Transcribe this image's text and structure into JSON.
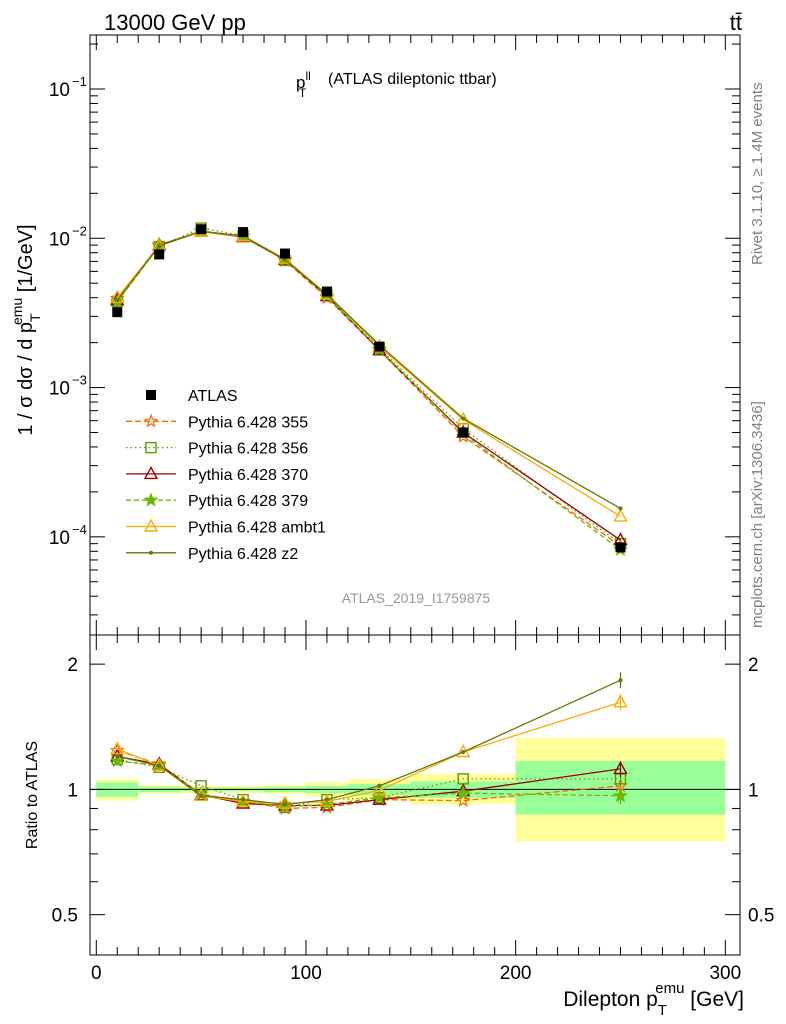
{
  "header": {
    "left": "13000 GeV pp",
    "right": "tt̄"
  },
  "side_labels": {
    "upper": "Rivet 3.1.10, ≥ 1.4M events",
    "lower": "mcplots.cern.ch [arXiv:1306.3436]"
  },
  "analysis_id": "ATLAS_2019_I1759875",
  "main_title": "(ATLAS dileptonic ttbar)",
  "main_title_symbol": {
    "base": "p",
    "sup": "ll",
    "sub": "T"
  },
  "main_ylabel": {
    "pre": "1 / σ  dσ / d p",
    "sup": "emu",
    "sub": "T",
    "post": " [1/GeV]"
  },
  "ratio_ylabel": "Ratio to ATLAS",
  "xlabel": {
    "pre": "Dilepton p",
    "sup": "emu",
    "sub": "T",
    "post": " [GeV]"
  },
  "colors": {
    "data": "#000000",
    "band_inner": "#99ff99",
    "band_outer": "#ffff99"
  },
  "chart_data": {
    "type": "scatter",
    "x_bin_edges": [
      0,
      20,
      40,
      60,
      80,
      100,
      120,
      150,
      200,
      300
    ],
    "x_centers": [
      10,
      30,
      50,
      70,
      90,
      110,
      135,
      175,
      250
    ],
    "xlim": [
      -3,
      307
    ],
    "x_ticks": [
      0,
      100,
      200,
      300
    ],
    "main": {
      "yscale": "log",
      "ylim": [
        2.2e-05,
        0.23
      ],
      "y_ticks": [
        {
          "value": 0.1,
          "mant": "10",
          "exp": "−1"
        },
        {
          "value": 0.01,
          "mant": "10",
          "exp": "−2"
        },
        {
          "value": 0.001,
          "mant": "10",
          "exp": "−3"
        },
        {
          "value": 0.0001,
          "mant": "10",
          "exp": "−4"
        }
      ]
    },
    "ratio": {
      "yscale": "log",
      "ylim": [
        0.4,
        2.35
      ],
      "y_ticks": [
        0.5,
        1,
        2
      ],
      "y_tick_labels": [
        "0.5",
        "1",
        "2"
      ]
    },
    "data": {
      "name": "ATLAS",
      "values": [
        0.0032,
        0.0078,
        0.0115,
        0.011,
        0.0079,
        0.0044,
        0.00188,
        0.0005,
        8.5e-05
      ],
      "band_inner": [
        [
          0.96,
          1.04
        ],
        [
          0.985,
          1.015
        ],
        [
          0.99,
          1.01
        ],
        [
          0.99,
          1.01
        ],
        [
          0.985,
          1.015
        ],
        [
          0.98,
          1.02
        ],
        [
          0.97,
          1.03
        ],
        [
          0.955,
          1.045
        ],
        [
          0.87,
          1.17
        ]
      ],
      "band_outer": [
        [
          0.94,
          1.06
        ],
        [
          0.975,
          1.025
        ],
        [
          0.98,
          1.02
        ],
        [
          0.98,
          1.02
        ],
        [
          0.975,
          1.025
        ],
        [
          0.96,
          1.04
        ],
        [
          0.94,
          1.06
        ],
        [
          0.92,
          1.09
        ],
        [
          0.75,
          1.33
        ]
      ]
    },
    "series": [
      {
        "name": "Pythia 6.428 355",
        "color": "#ff6600",
        "dash": "6,3",
        "marker": "star",
        "values": [
          0.00395,
          0.009,
          0.0112,
          0.0103,
          0.0071,
          0.004,
          0.00178,
          0.00047,
          8.7e-05
        ],
        "ratio": [
          1.24,
          1.15,
          0.975,
          0.935,
          0.9,
          0.905,
          0.945,
          0.94,
          1.02
        ]
      },
      {
        "name": "Pythia 6.428 356",
        "color": "#669900",
        "dash": "1.5,3",
        "marker": "open-square",
        "values": [
          0.00378,
          0.0088,
          0.0117,
          0.0104,
          0.0071,
          0.0042,
          0.00183,
          0.00053,
          9e-05
        ],
        "ratio": [
          1.18,
          1.13,
          1.02,
          0.945,
          0.905,
          0.945,
          0.955,
          1.06,
          1.06
        ]
      },
      {
        "name": "Pythia 6.428 370",
        "color": "#990000",
        "dash": "",
        "marker": "open-triangle",
        "values": [
          0.00385,
          0.009,
          0.0111,
          0.0102,
          0.0072,
          0.0041,
          0.00178,
          0.0005,
          9.5e-05
        ],
        "ratio": [
          1.2,
          1.15,
          0.97,
          0.925,
          0.915,
          0.915,
          0.945,
          0.99,
          1.12
        ]
      },
      {
        "name": "Pythia 6.428 379",
        "color": "#66bb00",
        "dash": "5,3",
        "marker": "star",
        "values": [
          0.00375,
          0.0089,
          0.0112,
          0.0103,
          0.0072,
          0.0041,
          0.0018,
          0.00049,
          8.2e-05
        ],
        "ratio": [
          1.17,
          1.14,
          0.975,
          0.935,
          0.91,
          0.92,
          0.955,
          0.98,
          0.965
        ]
      },
      {
        "name": "Pythia 6.428 ambt1",
        "color": "#ffaa00",
        "dash": "",
        "marker": "open-triangle",
        "values": [
          0.004,
          0.0089,
          0.0111,
          0.0103,
          0.0073,
          0.0042,
          0.00188,
          0.00061,
          0.000137
        ],
        "ratio": [
          1.25,
          1.14,
          0.965,
          0.935,
          0.925,
          0.935,
          0.995,
          1.23,
          1.62
        ]
      },
      {
        "name": "Pythia 6.428 z2",
        "color": "#667700",
        "dash": "",
        "marker": "dot",
        "values": [
          0.00385,
          0.0089,
          0.0111,
          0.0104,
          0.0072,
          0.0042,
          0.00193,
          0.00062,
          0.000155
        ],
        "ratio": [
          1.2,
          1.14,
          0.965,
          0.945,
          0.92,
          0.945,
          1.02,
          1.23,
          1.83
        ]
      }
    ]
  }
}
